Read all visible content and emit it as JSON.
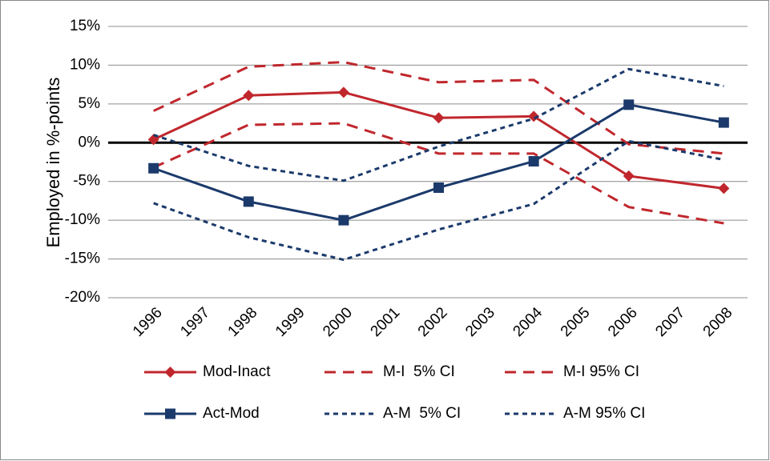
{
  "chart_data": {
    "type": "line",
    "y_title": "Employed in %-points",
    "x": [
      1996,
      1998,
      2000,
      2002,
      2004,
      2006,
      2008
    ],
    "xlim": [
      1995.5,
      2008.5
    ],
    "xticks": [
      1996,
      1997,
      1998,
      1999,
      2000,
      2001,
      2002,
      2003,
      2004,
      2005,
      2006,
      2007,
      2008
    ],
    "ylim": [
      -20,
      15
    ],
    "yticks": [
      {
        "value": -20,
        "label": "-20%"
      },
      {
        "value": -15,
        "label": "-15%"
      },
      {
        "value": -10,
        "label": "-10%"
      },
      {
        "value": -5,
        "label": "-5%"
      },
      {
        "value": 0,
        "label": "0%"
      },
      {
        "value": 5,
        "label": "5%"
      },
      {
        "value": 10,
        "label": "10%"
      },
      {
        "value": 15,
        "label": "15%"
      }
    ],
    "grid": true,
    "legend": "bottom",
    "series": [
      {
        "name": "Mod-Inact",
        "color": "#c0272d",
        "marker": "diamond",
        "dash": "solid",
        "values": [
          0.4,
          6.1,
          6.5,
          3.2,
          3.4,
          -4.3,
          -5.9
        ]
      },
      {
        "name": "M-I  5% CI",
        "color": "#c0272d",
        "marker": "none",
        "dash": "long",
        "values": [
          -3.2,
          2.3,
          2.5,
          -1.4,
          -1.4,
          -8.3,
          -10.4
        ]
      },
      {
        "name": "M-I 95% CI",
        "color": "#c0272d",
        "marker": "none",
        "dash": "long",
        "values": [
          4.1,
          9.8,
          10.4,
          7.8,
          8.1,
          -0.2,
          -1.4
        ]
      },
      {
        "name": "Act-Mod",
        "color": "#1b3a6b",
        "marker": "square",
        "dash": "solid",
        "values": [
          -3.3,
          -7.6,
          -10.0,
          -5.8,
          -2.4,
          4.9,
          2.6
        ]
      },
      {
        "name": "A-M  5% CI",
        "color": "#1b3a6b",
        "marker": "none",
        "dash": "short",
        "values": [
          -7.8,
          -12.2,
          -15.1,
          -11.2,
          -7.9,
          0.2,
          -2.2
        ]
      },
      {
        "name": "A-M 95% CI",
        "color": "#1b3a6b",
        "marker": "none",
        "dash": "short",
        "values": [
          1.0,
          -3.0,
          -4.9,
          -0.5,
          3.1,
          9.5,
          7.3
        ]
      }
    ]
  }
}
